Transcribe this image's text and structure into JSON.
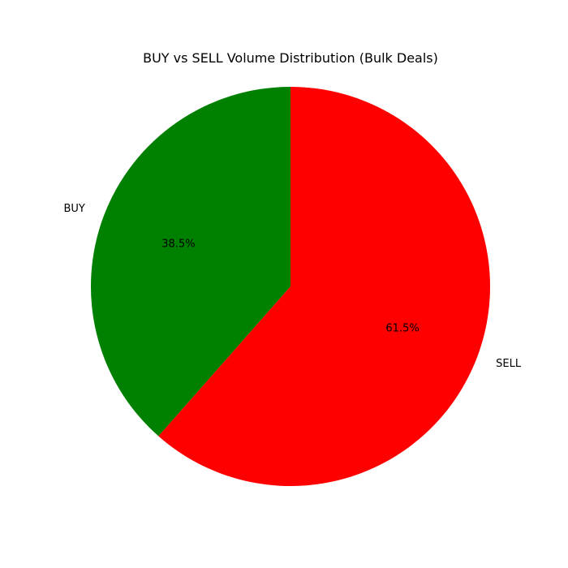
{
  "chart_data": {
    "type": "pie",
    "title": "BUY vs SELL Volume Distribution (Bulk Deals)",
    "slices": [
      {
        "label": "BUY",
        "value": 38.5,
        "display": "38.5%",
        "color": "#008000"
      },
      {
        "label": "SELL",
        "value": 61.5,
        "display": "61.5%",
        "color": "#ff0000"
      }
    ]
  }
}
